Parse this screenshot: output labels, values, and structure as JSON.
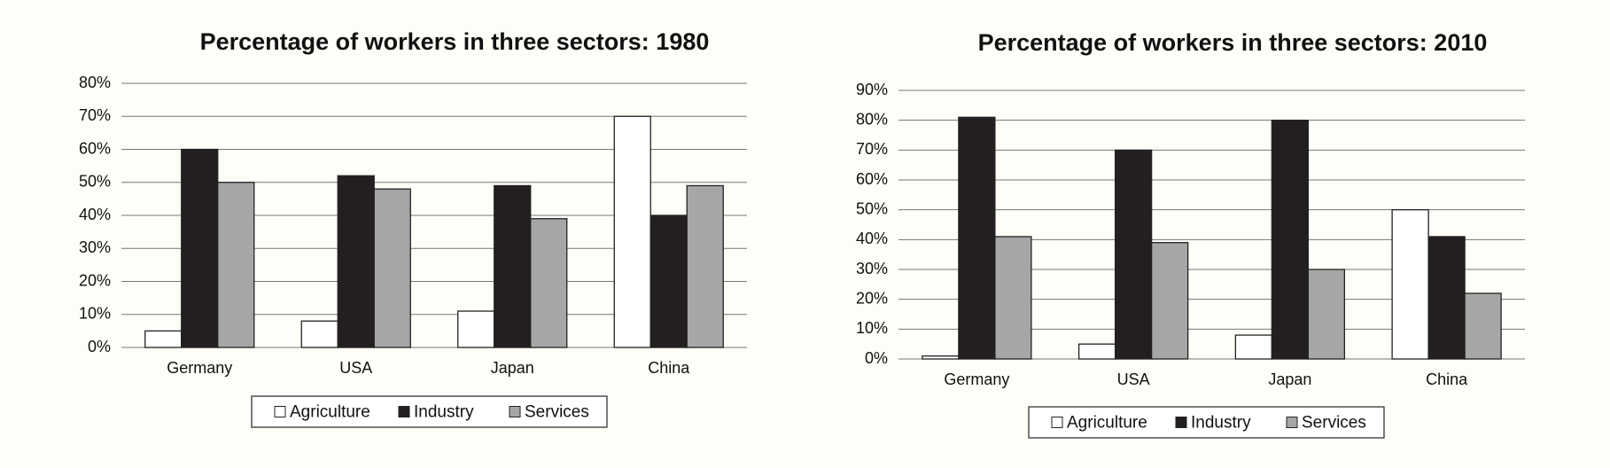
{
  "chart_data": [
    {
      "type": "bar",
      "title": "Percentage of workers in three sectors: 1980",
      "categories": [
        "Germany",
        "USA",
        "Japan",
        "China"
      ],
      "series": [
        {
          "name": "Agriculture",
          "color": "#ffffff",
          "values": [
            5,
            8,
            11,
            70
          ]
        },
        {
          "name": "Industry",
          "color": "#231f20",
          "values": [
            60,
            52,
            49,
            40
          ]
        },
        {
          "name": "Services",
          "color": "#a6a6a6",
          "values": [
            50,
            48,
            39,
            49
          ]
        }
      ],
      "ylim": [
        0,
        80
      ],
      "yticks": [
        {
          "value": 0,
          "label": "0%"
        },
        {
          "value": 10,
          "label": "10%"
        },
        {
          "value": 20,
          "label": "20%"
        },
        {
          "value": 30,
          "label": "30%"
        },
        {
          "value": 40,
          "label": "40%"
        },
        {
          "value": 50,
          "label": "50%"
        },
        {
          "value": 60,
          "label": "60%"
        },
        {
          "value": 70,
          "label": "70%"
        },
        {
          "value": 80,
          "label": "80%"
        }
      ],
      "grid": true,
      "legend": "bottom"
    },
    {
      "type": "bar",
      "title": "Percentage of workers in three sectors: 2010",
      "categories": [
        "Germany",
        "USA",
        "Japan",
        "China"
      ],
      "series": [
        {
          "name": "Agriculture",
          "color": "#ffffff",
          "values": [
            1,
            5,
            8,
            50
          ]
        },
        {
          "name": "Industry",
          "color": "#231f20",
          "values": [
            81,
            70,
            80,
            41
          ]
        },
        {
          "name": "Services",
          "color": "#a6a6a6",
          "values": [
            41,
            39,
            30,
            22
          ]
        }
      ],
      "ylim": [
        0,
        90
      ],
      "yticks": [
        {
          "value": 0,
          "label": "0%"
        },
        {
          "value": 10,
          "label": "10%"
        },
        {
          "value": 20,
          "label": "20%"
        },
        {
          "value": 30,
          "label": "30%"
        },
        {
          "value": 40,
          "label": "40%"
        },
        {
          "value": 50,
          "label": "50%"
        },
        {
          "value": 60,
          "label": "60%"
        },
        {
          "value": 70,
          "label": "70%"
        },
        {
          "value": 80,
          "label": "80%"
        },
        {
          "value": 90,
          "label": "90%"
        }
      ],
      "grid": true,
      "legend": "bottom"
    }
  ]
}
